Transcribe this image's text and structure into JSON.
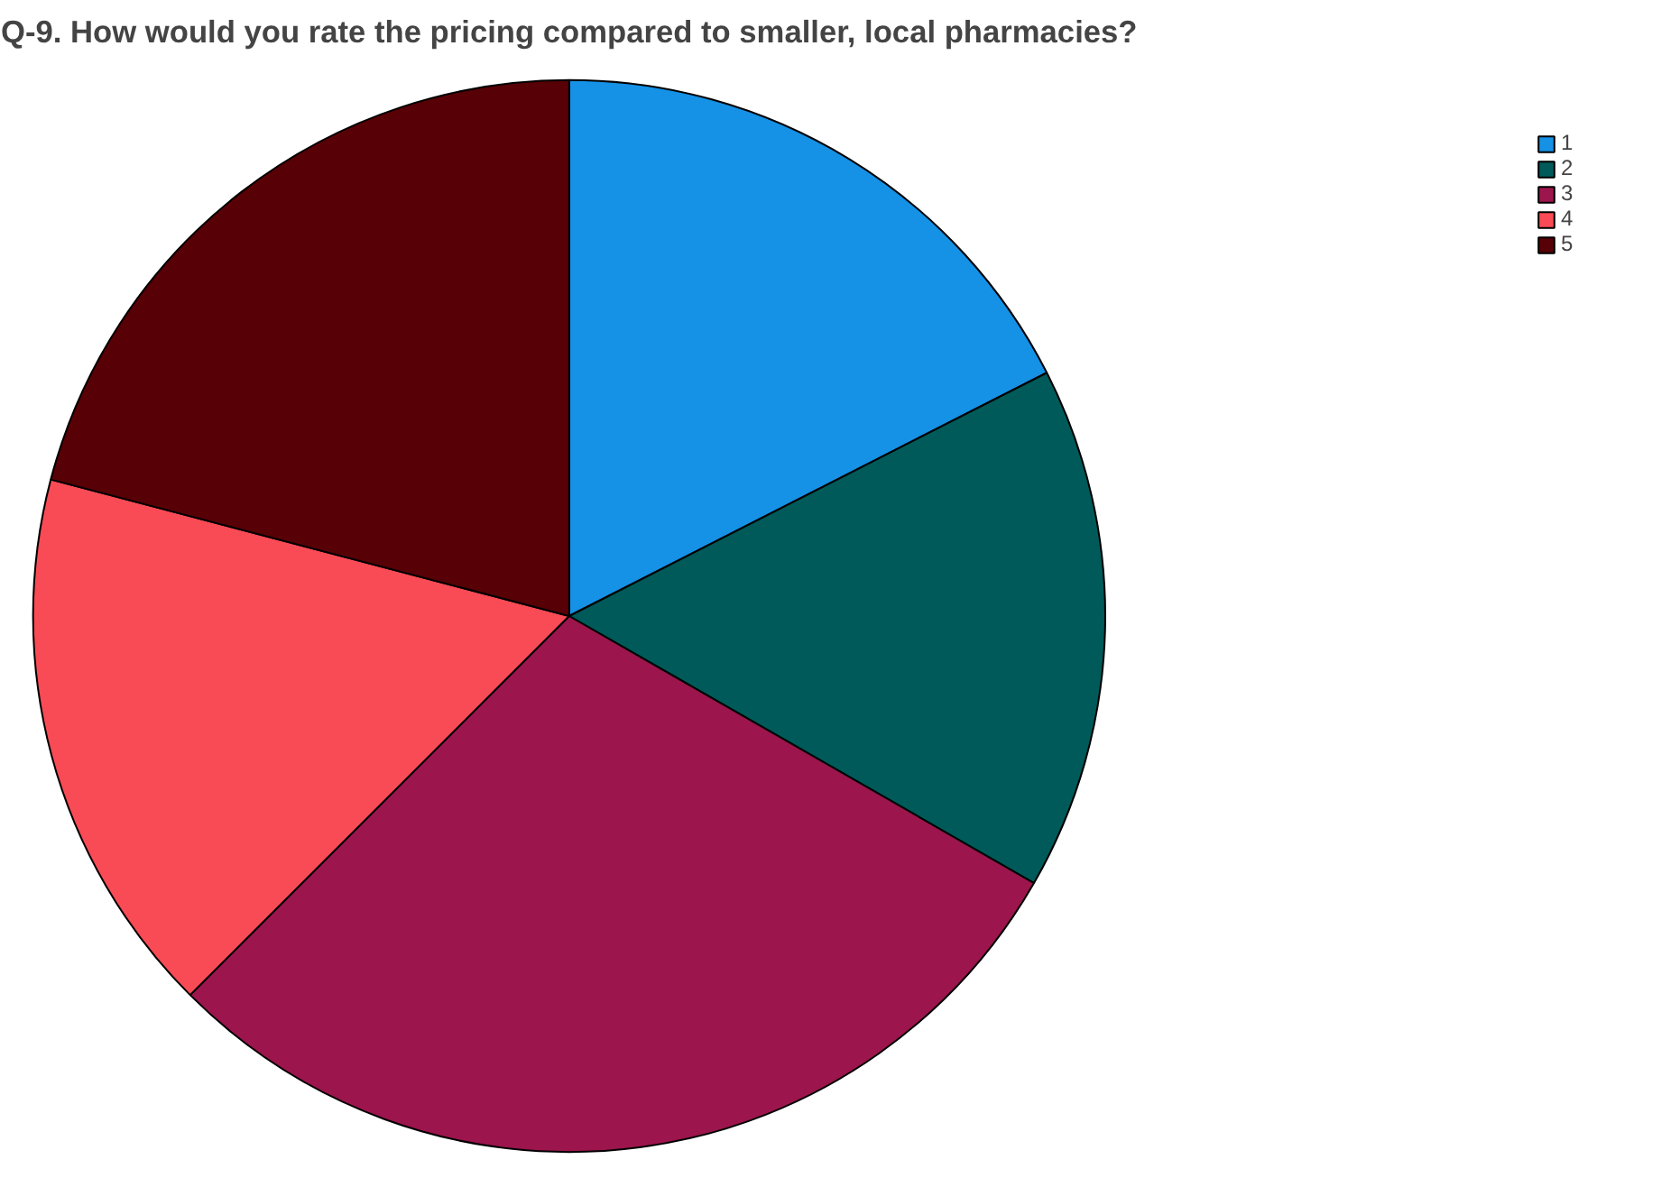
{
  "chart_data": {
    "type": "pie",
    "title": "Q-9. How would you rate the pricing compared to smaller, local pharmacies?",
    "categories": [
      "1",
      "2",
      "3",
      "4",
      "5"
    ],
    "values": [
      17.5,
      15.8,
      29.2,
      16.6,
      20.9
    ],
    "colors": [
      "#1591e6",
      "#005a5a",
      "#9c154d",
      "#f94b55",
      "#570006"
    ],
    "legend": "top right"
  }
}
